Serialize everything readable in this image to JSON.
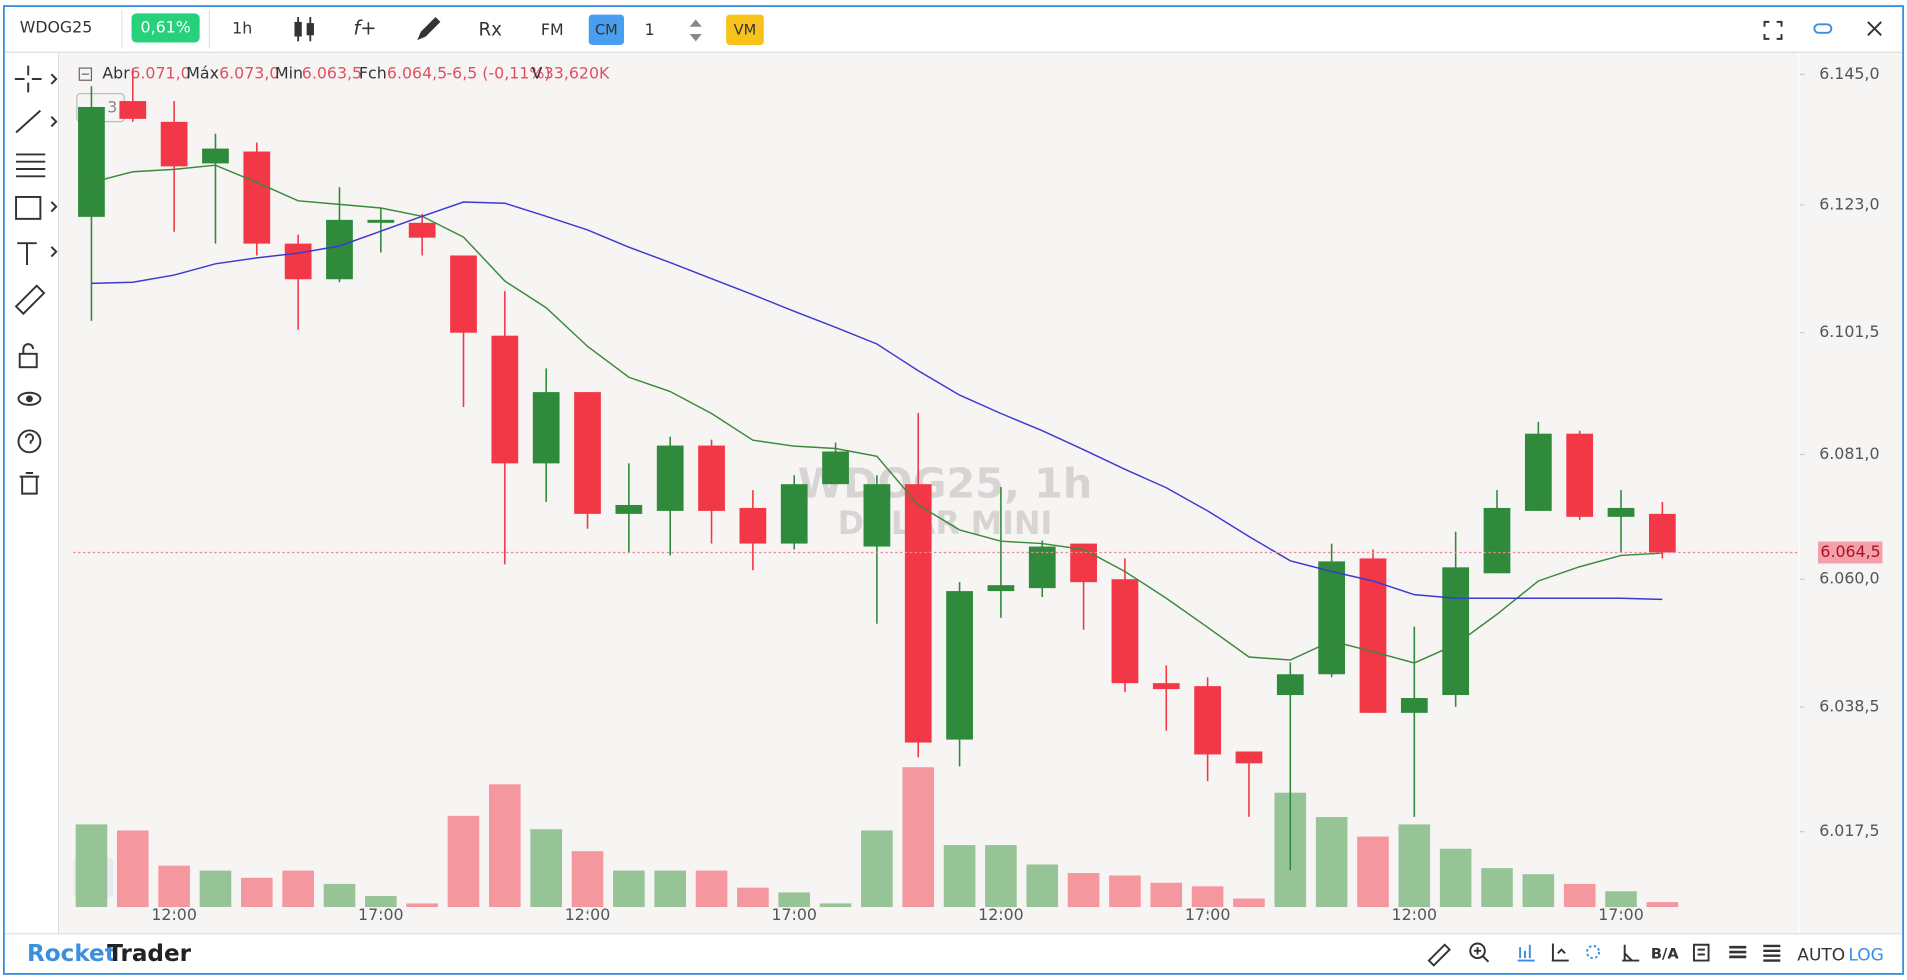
{
  "toolbar": {
    "symbol": "WDOG25",
    "change": "0,61%",
    "interval": "1h",
    "functions": "f+",
    "replay": "Rx",
    "fm": "FM",
    "cm": "CM",
    "quantity": "1",
    "vm": "VM"
  },
  "header": {
    "open_label": "Abr",
    "open": "6.071,0",
    "high_label": "Máx",
    "high": "6.073,0",
    "low_label": "Min",
    "low": "6.063,5",
    "close_label": "Fch",
    "close": "6.064,5",
    "change": "-6,5 (-0,11%)",
    "volume_label": "V",
    "volume": "33,620K",
    "indicators_count": "3"
  },
  "watermark": {
    "title": "WDOG25, 1h",
    "subtitle": "DÓLAR MINI"
  },
  "footer": {
    "brand_a": "Rocket",
    "brand_b": "Trader",
    "ba": "B/A",
    "auto": "AUTO",
    "log": "LOG"
  },
  "chart_data": {
    "type": "candlestick",
    "categories": [
      null,
      null,
      "12:00",
      null,
      null,
      null,
      null,
      "17:00",
      null,
      null,
      null,
      null,
      "12:00",
      null,
      null,
      null,
      null,
      "17:00",
      null,
      null,
      null,
      null,
      "12:00",
      null,
      null,
      null,
      null,
      "17:00",
      null,
      null,
      null,
      null,
      "12:00",
      null,
      null,
      null,
      null,
      "17:00",
      null
    ],
    "open": [
      6121,
      6140.5,
      6137,
      6130,
      6132,
      6116.5,
      6110.5,
      6120,
      6120,
      6114.5,
      6101,
      6079.5,
      6091.5,
      6071,
      6071.5,
      6082.5,
      6072,
      6066,
      6076,
      6065.5,
      6076,
      6033,
      6058,
      6058.5,
      6066,
      6060,
      6042.5,
      6042,
      6031,
      6040.5,
      6044,
      6063.5,
      6037.5,
      6040.5,
      6061,
      6071.5,
      6084.5,
      6070.5,
      6071
    ],
    "high": [
      6143,
      6146,
      6140.5,
      6135,
      6133.5,
      6118,
      6126,
      6122.5,
      6121.5,
      6114.5,
      6108.5,
      6095.5,
      6091.5,
      6079.5,
      6084,
      6083.5,
      6075,
      6077.5,
      6083,
      6077.5,
      6088,
      6059.5,
      6075.5,
      6066.5,
      6066,
      6063.5,
      6045.5,
      6043.5,
      6031,
      6046,
      6066,
      6065,
      6052,
      6068,
      6075,
      6086.5,
      6085,
      6075,
      6073
    ],
    "low": [
      6103.5,
      6137,
      6118.5,
      6116.5,
      6114.5,
      6102,
      6110,
      6115,
      6114.5,
      6089,
      6062.5,
      6073,
      6068.5,
      6064.5,
      6064,
      6066,
      6061.5,
      6065,
      6076,
      6052.5,
      6030,
      6028.5,
      6053.5,
      6057,
      6051.5,
      6041,
      6034.5,
      6026,
      6020,
      6011,
      6043.5,
      6037.5,
      6020,
      6038.5,
      6061,
      6071.5,
      6070,
      6064.5,
      6063.5
    ],
    "close": [
      6139.5,
      6137.5,
      6129.5,
      6132.5,
      6116.5,
      6110.5,
      6120.5,
      6120.5,
      6117.5,
      6101.5,
      6079.5,
      6091.5,
      6071,
      6072.5,
      6082.5,
      6071.5,
      6066,
      6076,
      6081.5,
      6076,
      6032.5,
      6058,
      6059,
      6065.5,
      6059.5,
      6042.5,
      6041.5,
      6030.5,
      6029,
      6044,
      6063,
      6037.5,
      6040,
      6062,
      6072,
      6084.5,
      6070.5,
      6072,
      6064.5
    ],
    "volume": [
      571,
      529,
      286,
      252,
      202,
      252,
      160,
      76,
      25,
      630,
      848,
      538,
      386,
      252,
      252,
      252,
      134,
      101,
      25,
      529,
      966,
      428,
      428,
      294,
      235,
      218,
      168,
      143,
      59,
      790,
      622,
      487,
      571,
      403,
      269,
      227,
      160,
      109,
      34
    ],
    "ma_short": {
      "color": "#3a8a3a",
      "values": [
        6126.8,
        6128.6,
        6129,
        6129.7,
        6126.8,
        6123.7,
        6123.1,
        6122.5,
        6121.1,
        6117.6,
        6110.2,
        6105.7,
        6099.2,
        6094,
        6091.6,
        6087.9,
        6083.4,
        6082.4,
        6082,
        6080.7,
        6072.5,
        6068.3,
        6066.4,
        6066,
        6065,
        6061.3,
        6056.8,
        6051.9,
        6046.9,
        6046.4,
        6049.6,
        6047.8,
        6045.9,
        6049,
        6054.1,
        6059.7,
        6062.1,
        6064,
        6064.4
      ]
    },
    "ma_long": {
      "color": "#3b3bd0",
      "values": [
        6109.8,
        6110,
        6111.2,
        6113.1,
        6114.1,
        6114.9,
        6116.1,
        6118.6,
        6121.1,
        6123.5,
        6123.3,
        6121.1,
        6118.8,
        6115.9,
        6113.3,
        6110.6,
        6107.9,
        6105.1,
        6102.4,
        6099.6,
        6095.1,
        6091,
        6087.9,
        6085,
        6081.8,
        6078.5,
        6075.4,
        6071.5,
        6067.2,
        6063.1,
        6061.3,
        6059.7,
        6057.4,
        6056.8,
        6056.8,
        6056.8,
        6056.8,
        6056.8,
        6056.6
      ]
    },
    "up_color": "#2f8b3b",
    "down_color": "#f23847",
    "volume_up_color": "#97c497",
    "volume_down_color": "#f5979e",
    "price_line": {
      "value": 6064.5,
      "label": "6.064,5"
    },
    "ylim": [
      6004.4,
      6148.3
    ],
    "yticks": [
      {
        "value": 6145,
        "label": "6.145,0"
      },
      {
        "value": 6123,
        "label": "6.123,0"
      },
      {
        "value": 6101.5,
        "label": "6.101,5"
      },
      {
        "value": 6081,
        "label": "6.081,0"
      },
      {
        "value": 6060,
        "label": "6.060,0"
      },
      {
        "value": 6038.5,
        "label": "6.038,5"
      },
      {
        "value": 6017.5,
        "label": "6.017,5"
      }
    ],
    "grid": false
  }
}
